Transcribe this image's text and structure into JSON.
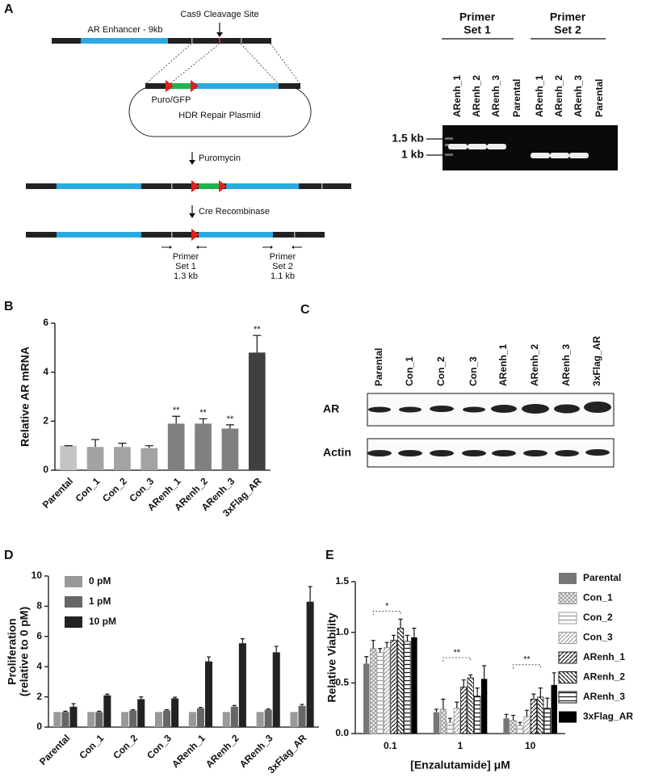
{
  "panel_a": {
    "label": "A",
    "diagram": {
      "cleavage_label": "Cas9 Cleavage Site",
      "enhancer_label": "AR Enhancer - 9kb",
      "cassette_label": "Puro/GFP",
      "plasmid_label": "HDR Repair Plasmid",
      "step1": "Puromycin",
      "step2": "Cre Recombinase",
      "primers": [
        [
          "Primer",
          "Set 1",
          "1.3 kb"
        ],
        [
          "Primer",
          "Set 2",
          "1.1 kb"
        ]
      ]
    },
    "gel": {
      "groups": [
        [
          "Primer",
          "Set 1"
        ],
        [
          "Primer",
          "Set 2"
        ]
      ],
      "lanes": [
        "ARenh_1",
        "ARenh_2",
        "ARenh_3",
        "Parental",
        "ARenh_1",
        "ARenh_2",
        "ARenh_3",
        "Parental"
      ],
      "markers": [
        "1.5 kb",
        "1 kb"
      ]
    }
  },
  "panel_c": {
    "label": "C",
    "lanes": [
      "Parental",
      "Con_1",
      "Con_2",
      "Con_3",
      "ARenh_1",
      "ARenh_2",
      "ARenh_3",
      "3xFlag_AR"
    ],
    "rows": [
      "AR",
      "Actin"
    ]
  },
  "chart_data": [
    {
      "type": "bar",
      "label": "B",
      "ylabel": "Relative AR mRNA",
      "categories": [
        "Parental",
        "Con_1",
        "Con_2",
        "Con_3",
        "ARenh_1",
        "ARenh_2",
        "ARenh_3",
        "3xFlag_AR"
      ],
      "values": [
        1.0,
        0.95,
        0.95,
        0.9,
        1.9,
        1.9,
        1.7,
        4.8
      ],
      "errors": [
        0,
        0.3,
        0.15,
        0.1,
        0.3,
        0.2,
        0.15,
        0.7
      ],
      "colors": [
        "#c4c4c4",
        "#a3a3a3",
        "#a3a3a3",
        "#a3a3a3",
        "#808080",
        "#808080",
        "#808080",
        "#404040"
      ],
      "annotations": [
        null,
        null,
        null,
        null,
        "**",
        "**",
        "**",
        "**"
      ],
      "ylim": [
        0,
        6
      ],
      "yticks": [
        0,
        2,
        4,
        6
      ]
    },
    {
      "type": "grouped-bar",
      "label": "D",
      "ylabel": [
        "Proliferation",
        "(relative to 0 pM)"
      ],
      "categories": [
        "Parental",
        "Con_1",
        "Con_2",
        "Con_3",
        "ARenh_1",
        "ARenh_2",
        "ARenh_3",
        "3xFlag_AR"
      ],
      "series": [
        {
          "name": "0 pM",
          "color": "#999999",
          "pattern": "solid",
          "values": [
            1,
            1,
            1,
            1,
            1,
            1,
            1,
            1
          ],
          "errors": [
            0,
            0,
            0,
            0,
            0,
            0,
            0,
            0
          ]
        },
        {
          "name": "1 pM",
          "color": "#666666",
          "pattern": "solid",
          "values": [
            1.0,
            1.0,
            1.1,
            1.1,
            1.25,
            1.35,
            1.15,
            1.4
          ],
          "errors": [
            0.05,
            0.05,
            0.05,
            0.05,
            0.05,
            0.08,
            0.05,
            0.1
          ]
        },
        {
          "name": "10 pM",
          "color": "#222222",
          "pattern": "solid",
          "values": [
            1.35,
            2.1,
            1.85,
            1.9,
            4.35,
            5.55,
            4.95,
            8.3
          ],
          "errors": [
            0.2,
            0.08,
            0.15,
            0.08,
            0.3,
            0.3,
            0.4,
            1.0
          ]
        }
      ],
      "legend": "upper left",
      "ylim": [
        0,
        10
      ],
      "yticks": [
        0,
        2,
        4,
        6,
        8,
        10
      ]
    },
    {
      "type": "grouped-bar",
      "label": "E",
      "ylabel": "Relative Viability",
      "xlabel": "[Enzalutamide] μM",
      "categories": [
        "0.1",
        "1",
        "10"
      ],
      "series": [
        {
          "name": "Parental",
          "color": "#777777",
          "pattern": "solid",
          "values": [
            0.69,
            0.21,
            0.15
          ],
          "errors": [
            0.07,
            0.03,
            0.04
          ]
        },
        {
          "name": "Con_1",
          "color": "#999999",
          "pattern": "crosshatch",
          "values": [
            0.84,
            0.24,
            0.13
          ],
          "errors": [
            0.08,
            0.1,
            0.05
          ]
        },
        {
          "name": "Con_2",
          "color": "#999999",
          "pattern": "horizontal",
          "values": [
            0.8,
            0.11,
            0.08
          ],
          "errors": [
            0.04,
            0.04,
            0.03
          ]
        },
        {
          "name": "Con_3",
          "color": "#999999",
          "pattern": "diagonal",
          "values": [
            0.85,
            0.25,
            0.17
          ],
          "errors": [
            0.05,
            0.06,
            0.06
          ]
        },
        {
          "name": "ARenh_1",
          "color": "#111111",
          "pattern": "diagonal",
          "values": [
            0.92,
            0.46,
            0.34
          ],
          "errors": [
            0.05,
            0.07,
            0.05
          ]
        },
        {
          "name": "ARenh_2",
          "color": "#111111",
          "pattern": "backdiagonal",
          "values": [
            1.04,
            0.55,
            0.36
          ],
          "errors": [
            0.09,
            0.03,
            0.09
          ]
        },
        {
          "name": "ARenh_3",
          "color": "#111111",
          "pattern": "horizontal",
          "values": [
            0.91,
            0.37,
            0.25
          ],
          "errors": [
            0.06,
            0.08,
            0.1
          ]
        },
        {
          "name": "3xFlag_AR",
          "color": "#000000",
          "pattern": "solid",
          "values": [
            0.95,
            0.54,
            0.48
          ],
          "errors": [
            0.09,
            0.13,
            0.12
          ]
        }
      ],
      "annotations": [
        "*",
        "**",
        "**"
      ],
      "legend": "right",
      "ylim": [
        0,
        1.5
      ],
      "yticks": [
        {
          "value": 0,
          "label": "0.0"
        },
        0.5,
        {
          "value": 1,
          "label": "1.0"
        },
        1.5
      ]
    }
  ]
}
